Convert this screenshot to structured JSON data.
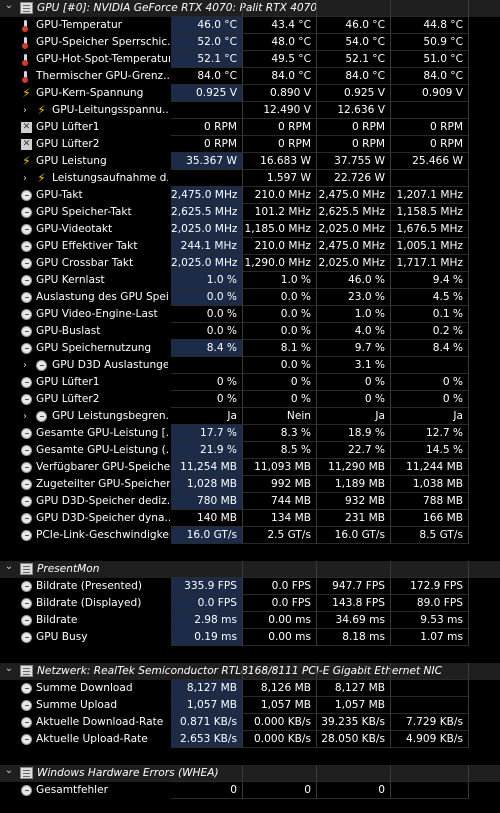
{
  "sections": [
    {
      "title": "GPU [#0]: NVIDIA GeForce RTX 4070: Palit RTX 4070",
      "rows": [
        {
          "label": "GPU-Temperatur",
          "icon": "thermometer-icon",
          "indent": 0,
          "values": [
            "46.0 °C",
            "43.4 °C",
            "46.0 °C",
            "44.8 °C"
          ],
          "hl": true
        },
        {
          "label": "GPU-Speicher Sperrschic...",
          "icon": "thermometer-icon",
          "indent": 0,
          "values": [
            "52.0 °C",
            "48.0 °C",
            "54.0 °C",
            "50.9 °C"
          ],
          "hl": true
        },
        {
          "label": "GPU-Hot-Spot-Temperatur",
          "icon": "thermometer-icon",
          "indent": 0,
          "values": [
            "52.1 °C",
            "49.5 °C",
            "52.1 °C",
            "51.0 °C"
          ],
          "hl": true
        },
        {
          "label": "Thermischer GPU-Grenz...",
          "icon": "thermometer-icon",
          "indent": 0,
          "values": [
            "84.0 °C",
            "84.0 °C",
            "84.0 °C",
            "84.0 °C"
          ],
          "hl": false
        },
        {
          "label": "GPU-Kern-Spannung",
          "icon": "bolt-icon",
          "indent": 0,
          "values": [
            "0.925 V",
            "0.890 V",
            "0.925 V",
            "0.909 V"
          ],
          "hl": true
        },
        {
          "label": "GPU-Leitungsspannu...",
          "icon": "bolt-icon",
          "indent": 1,
          "chevron": "›",
          "values": [
            "",
            "12.490 V",
            "12.636 V",
            ""
          ],
          "hl": false
        },
        {
          "label": "GPU Lüfter1",
          "icon": "fan-icon",
          "indent": 0,
          "values": [
            "0 RPM",
            "0 RPM",
            "0 RPM",
            "0 RPM"
          ],
          "hl": false
        },
        {
          "label": "GPU Lüfter2",
          "icon": "fan-icon",
          "indent": 0,
          "values": [
            "0 RPM",
            "0 RPM",
            "0 RPM",
            "0 RPM"
          ],
          "hl": false
        },
        {
          "label": "GPU Leistung",
          "icon": "bolt-icon",
          "indent": 0,
          "values": [
            "35.367 W",
            "16.683 W",
            "37.755 W",
            "25.466 W"
          ],
          "hl": true
        },
        {
          "label": "Leistungsaufnahme d...",
          "icon": "bolt-icon",
          "indent": 1,
          "chevron": "›",
          "values": [
            "",
            "1.597 W",
            "22.726 W",
            ""
          ],
          "hl": false
        },
        {
          "label": "GPU-Takt",
          "icon": "clock-icon",
          "indent": 0,
          "values": [
            "2,475.0 MHz",
            "210.0 MHz",
            "2,475.0 MHz",
            "1,207.1 MHz"
          ],
          "hl": true
        },
        {
          "label": "GPU Speicher-Takt",
          "icon": "clock-icon",
          "indent": 0,
          "values": [
            "2,625.5 MHz",
            "101.2 MHz",
            "2,625.5 MHz",
            "1,158.5 MHz"
          ],
          "hl": true
        },
        {
          "label": "GPU-Videotakt",
          "icon": "clock-icon",
          "indent": 0,
          "values": [
            "2,025.0 MHz",
            "1,185.0 MHz",
            "2,025.0 MHz",
            "1,676.5 MHz"
          ],
          "hl": true
        },
        {
          "label": "GPU Effektiver Takt",
          "icon": "clock-icon",
          "indent": 0,
          "values": [
            "244.1 MHz",
            "210.0 MHz",
            "2,475.0 MHz",
            "1,005.1 MHz"
          ],
          "hl": true
        },
        {
          "label": "GPU Crossbar Takt",
          "icon": "clock-icon",
          "indent": 0,
          "values": [
            "2,025.0 MHz",
            "1,290.0 MHz",
            "2,025.0 MHz",
            "1,717.1 MHz"
          ],
          "hl": true
        },
        {
          "label": "GPU Kernlast",
          "icon": "clock-icon",
          "indent": 0,
          "values": [
            "1.0 %",
            "1.0 %",
            "46.0 %",
            "9.4 %"
          ],
          "hl": true
        },
        {
          "label": "Auslastung des GPU Spei...",
          "icon": "clock-icon",
          "indent": 0,
          "values": [
            "0.0 %",
            "0.0 %",
            "23.0 %",
            "4.5 %"
          ],
          "hl": true
        },
        {
          "label": "GPU Video-Engine-Last",
          "icon": "clock-icon",
          "indent": 0,
          "values": [
            "0.0 %",
            "0.0 %",
            "1.0 %",
            "0.1 %"
          ],
          "hl": false
        },
        {
          "label": "GPU-Buslast",
          "icon": "clock-icon",
          "indent": 0,
          "values": [
            "0.0 %",
            "0.0 %",
            "4.0 %",
            "0.2 %"
          ],
          "hl": false
        },
        {
          "label": "GPU Speichernutzung",
          "icon": "clock-icon",
          "indent": 0,
          "values": [
            "8.4 %",
            "8.1 %",
            "9.7 %",
            "8.4 %"
          ],
          "hl": true
        },
        {
          "label": "GPU D3D Auslastungen",
          "icon": "clock-icon",
          "indent": 1,
          "chevron": "›",
          "values": [
            "",
            "0.0 %",
            "3.1 %",
            ""
          ],
          "hl": false
        },
        {
          "label": "GPU Lüfter1",
          "icon": "clock-icon",
          "indent": 0,
          "values": [
            "0 %",
            "0 %",
            "0 %",
            "0 %"
          ],
          "hl": false
        },
        {
          "label": "GPU Lüfter2",
          "icon": "clock-icon",
          "indent": 0,
          "values": [
            "0 %",
            "0 %",
            "0 %",
            "0 %"
          ],
          "hl": false
        },
        {
          "label": "GPU Leistungsbegren...",
          "icon": "clock-icon",
          "indent": 1,
          "chevron": "›",
          "values": [
            "Ja",
            "Nein",
            "Ja",
            "Ja"
          ],
          "hl": false
        },
        {
          "label": "Gesamte GPU-Leistung [...",
          "icon": "clock-icon",
          "indent": 0,
          "values": [
            "17.7 %",
            "8.3 %",
            "18.9 %",
            "12.7 %"
          ],
          "hl": true
        },
        {
          "label": "Gesamte GPU-Leistung (...",
          "icon": "clock-icon",
          "indent": 0,
          "values": [
            "21.9 %",
            "8.5 %",
            "22.7 %",
            "14.5 %"
          ],
          "hl": true
        },
        {
          "label": "Verfügbarer GPU-Speicher",
          "icon": "clock-icon",
          "indent": 0,
          "values": [
            "11,254 MB",
            "11,093 MB",
            "11,290 MB",
            "11,244 MB"
          ],
          "hl": true
        },
        {
          "label": "Zugeteilter GPU-Speicher",
          "icon": "clock-icon",
          "indent": 0,
          "values": [
            "1,028 MB",
            "992 MB",
            "1,189 MB",
            "1,038 MB"
          ],
          "hl": true
        },
        {
          "label": "GPU D3D-Speicher dediz...",
          "icon": "clock-icon",
          "indent": 0,
          "values": [
            "780 MB",
            "744 MB",
            "932 MB",
            "788 MB"
          ],
          "hl": true
        },
        {
          "label": "GPU D3D-Speicher dyna...",
          "icon": "clock-icon",
          "indent": 0,
          "values": [
            "140 MB",
            "134 MB",
            "231 MB",
            "166 MB"
          ],
          "hl": false
        },
        {
          "label": "PCIe-Link-Geschwindigkeit",
          "icon": "clock-icon",
          "indent": 0,
          "values": [
            "16.0 GT/s",
            "2.5 GT/s",
            "16.0 GT/s",
            "8.5 GT/s"
          ],
          "hl": true
        }
      ]
    },
    {
      "title": "PresentMon",
      "rows": [
        {
          "label": "Bildrate (Presented)",
          "icon": "clock-icon",
          "indent": 0,
          "values": [
            "335.9 FPS",
            "0.0 FPS",
            "947.7 FPS",
            "172.9 FPS"
          ],
          "hl": true
        },
        {
          "label": "Bildrate (Displayed)",
          "icon": "clock-icon",
          "indent": 0,
          "values": [
            "0.0 FPS",
            "0.0 FPS",
            "143.8 FPS",
            "89.0 FPS"
          ],
          "hl": true
        },
        {
          "label": "Bildrate",
          "icon": "clock-icon",
          "indent": 0,
          "values": [
            "2.98 ms",
            "0.00 ms",
            "34.69 ms",
            "9.53 ms"
          ],
          "hl": true
        },
        {
          "label": "GPU Busy",
          "icon": "clock-icon",
          "indent": 0,
          "values": [
            "0.19 ms",
            "0.00 ms",
            "8.18 ms",
            "1.07 ms"
          ],
          "hl": true
        }
      ]
    },
    {
      "title": "Netzwerk: RealTek Semiconductor RTL8168/8111 PCI-E Gigabit Ethernet NIC",
      "rows": [
        {
          "label": "Summe Download",
          "icon": "clock-icon",
          "indent": 0,
          "values": [
            "8,127 MB",
            "8,126 MB",
            "8,127 MB",
            ""
          ],
          "hl": true
        },
        {
          "label": "Summe Upload",
          "icon": "clock-icon",
          "indent": 0,
          "values": [
            "1,057 MB",
            "1,057 MB",
            "1,057 MB",
            ""
          ],
          "hl": true
        },
        {
          "label": "Aktuelle Download-Rate",
          "icon": "clock-icon",
          "indent": 0,
          "values": [
            "0.871 KB/s",
            "0.000 KB/s",
            "39.235 KB/s",
            "7.729 KB/s"
          ],
          "hl": true
        },
        {
          "label": "Aktuelle Upload-Rate",
          "icon": "clock-icon",
          "indent": 0,
          "values": [
            "2.653 KB/s",
            "0.000 KB/s",
            "28.050 KB/s",
            "4.909 KB/s"
          ],
          "hl": true
        }
      ]
    },
    {
      "title": "Windows Hardware Errors (WHEA)",
      "rows": [
        {
          "label": "Gesamtfehler",
          "icon": "clock-icon",
          "indent": 0,
          "values": [
            "0",
            "0",
            "0",
            ""
          ],
          "hl": false
        }
      ]
    }
  ],
  "colors": {
    "background": "#000000",
    "highlight": "#1c2b47",
    "header": "#1f1f1f"
  }
}
